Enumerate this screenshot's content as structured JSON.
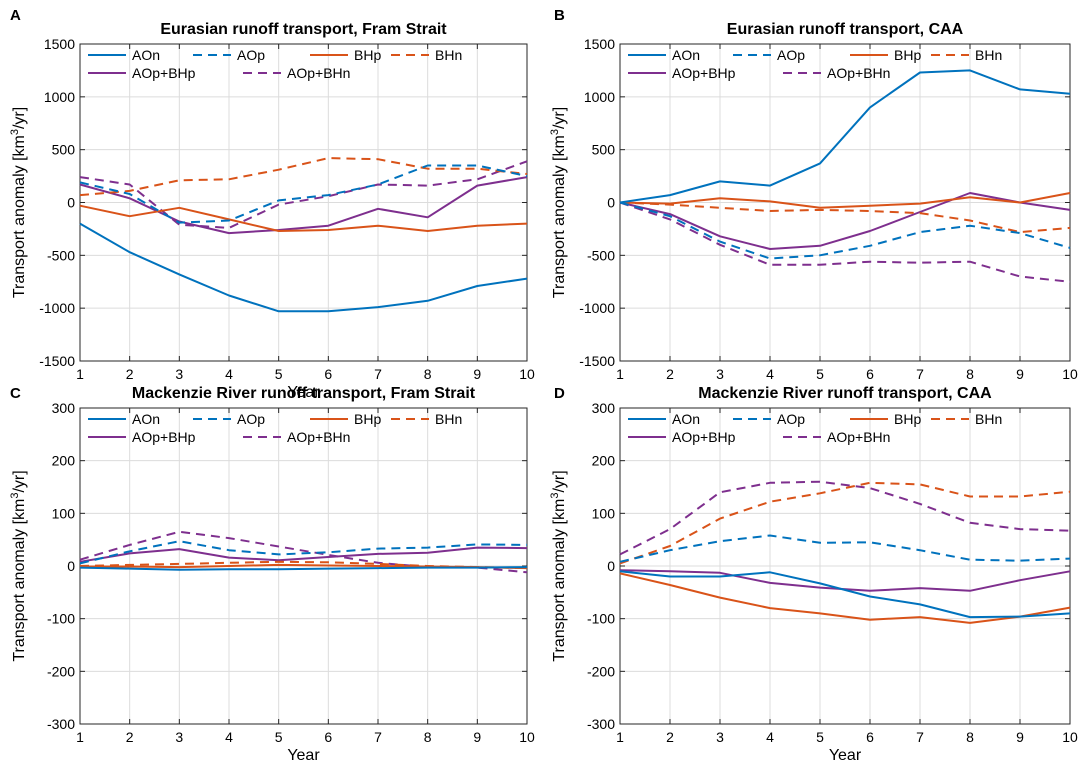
{
  "figure": {
    "xlabel": "Year",
    "ylabel": "Transport anomaly [km³/yr]",
    "series_styles": {
      "AOn": {
        "color": "#0072BD",
        "dash": "solid"
      },
      "AOp": {
        "color": "#0072BD",
        "dash": "dashed"
      },
      "BHp": {
        "color": "#D95319",
        "dash": "solid"
      },
      "BHn": {
        "color": "#D95319",
        "dash": "dashed"
      },
      "AOp+BHp": {
        "color": "#7E2F8E",
        "dash": "solid"
      },
      "AOp+BHn": {
        "color": "#7E2F8E",
        "dash": "dashed"
      }
    }
  },
  "chart_data": [
    {
      "panel": "A",
      "type": "line",
      "title": "Eurasian runoff transport, Fram Strait",
      "xlabel": "Year",
      "ylabel": "Transport anomaly [km³/yr]",
      "xlim": [
        1,
        10
      ],
      "ylim": [
        -1500,
        1500
      ],
      "xticks": [
        1,
        2,
        3,
        4,
        5,
        6,
        7,
        8,
        9,
        10
      ],
      "yticks": [
        -1500,
        -1000,
        -500,
        0,
        500,
        1000,
        1500
      ],
      "x": [
        1,
        2,
        3,
        4,
        5,
        6,
        7,
        8,
        9,
        10
      ],
      "series": [
        {
          "name": "AOn",
          "values": [
            -200,
            -470,
            -680,
            -880,
            -1030,
            -1030,
            -990,
            -930,
            -790,
            -720
          ]
        },
        {
          "name": "AOp",
          "values": [
            190,
            80,
            -190,
            -170,
            20,
            70,
            170,
            350,
            350,
            250
          ]
        },
        {
          "name": "BHp",
          "values": [
            -30,
            -130,
            -50,
            -160,
            -270,
            -260,
            -220,
            -270,
            -220,
            -200
          ]
        },
        {
          "name": "BHn",
          "values": [
            70,
            110,
            210,
            220,
            310,
            420,
            410,
            320,
            320,
            270
          ]
        },
        {
          "name": "AOp+BHp",
          "values": [
            170,
            40,
            -180,
            -290,
            -260,
            -220,
            -60,
            -140,
            160,
            240
          ]
        },
        {
          "name": "AOp+BHn",
          "values": [
            240,
            170,
            -210,
            -240,
            -20,
            60,
            170,
            160,
            220,
            390
          ]
        }
      ]
    },
    {
      "panel": "B",
      "type": "line",
      "title": "Eurasian runoff transport, CAA",
      "xlabel": "",
      "ylabel": "",
      "xlim": [
        1,
        10
      ],
      "ylim": [
        -1500,
        1500
      ],
      "xticks": [
        1,
        2,
        3,
        4,
        5,
        6,
        7,
        8,
        9,
        10
      ],
      "yticks": [
        -1500,
        -1000,
        -500,
        0,
        500,
        1000,
        1500
      ],
      "x": [
        1,
        2,
        3,
        4,
        5,
        6,
        7,
        8,
        9,
        10
      ],
      "series": [
        {
          "name": "AOn",
          "values": [
            0,
            70,
            200,
            160,
            370,
            900,
            1230,
            1250,
            1070,
            1030
          ]
        },
        {
          "name": "AOp",
          "values": [
            0,
            -130,
            -370,
            -530,
            -500,
            -410,
            -280,
            -220,
            -290,
            -430
          ]
        },
        {
          "name": "BHp",
          "values": [
            0,
            -10,
            40,
            10,
            -50,
            -30,
            -10,
            50,
            0,
            90
          ]
        },
        {
          "name": "BHn",
          "values": [
            0,
            -20,
            -50,
            -80,
            -70,
            -80,
            -100,
            -170,
            -280,
            -240
          ]
        },
        {
          "name": "AOp+BHp",
          "values": [
            0,
            -110,
            -320,
            -440,
            -410,
            -270,
            -90,
            90,
            0,
            -70
          ]
        },
        {
          "name": "AOp+BHn",
          "values": [
            0,
            -160,
            -400,
            -590,
            -590,
            -560,
            -570,
            -560,
            -700,
            -750
          ]
        }
      ]
    },
    {
      "panel": "C",
      "type": "line",
      "title": "Mackenzie River runoff transport, Fram Strait",
      "xlabel": "Year",
      "ylabel": "Transport anomaly [km³/yr]",
      "xlim": [
        1,
        10
      ],
      "ylim": [
        -300,
        300
      ],
      "xticks": [
        1,
        2,
        3,
        4,
        5,
        6,
        7,
        8,
        9,
        10
      ],
      "yticks": [
        -300,
        -200,
        -100,
        0,
        100,
        200,
        300
      ],
      "x": [
        1,
        2,
        3,
        4,
        5,
        6,
        7,
        8,
        9,
        10
      ],
      "series": [
        {
          "name": "AOn",
          "values": [
            -3,
            -5,
            -7,
            -6,
            -6,
            -5,
            -4,
            -3,
            -3,
            -2
          ]
        },
        {
          "name": "AOp",
          "values": [
            5,
            28,
            47,
            30,
            22,
            26,
            33,
            35,
            41,
            40
          ]
        },
        {
          "name": "BHp",
          "values": [
            -1,
            -1,
            -2,
            0,
            2,
            1,
            0,
            -1,
            -2,
            -4
          ]
        },
        {
          "name": "BHn",
          "values": [
            0,
            2,
            4,
            6,
            8,
            7,
            4,
            0,
            -2,
            -4
          ]
        },
        {
          "name": "AOp+BHp",
          "values": [
            8,
            24,
            32,
            16,
            11,
            17,
            23,
            25,
            35,
            34
          ]
        },
        {
          "name": "AOp+BHn",
          "values": [
            12,
            40,
            65,
            53,
            37,
            21,
            6,
            -2,
            -3,
            -12
          ]
        }
      ]
    },
    {
      "panel": "D",
      "type": "line",
      "title": "Mackenzie River runoff transport, CAA",
      "xlabel": "Year",
      "ylabel": "Transport anomaly [km³/yr]",
      "xlim": [
        1,
        10
      ],
      "ylim": [
        -300,
        300
      ],
      "xticks": [
        1,
        2,
        3,
        4,
        5,
        6,
        7,
        8,
        9,
        10
      ],
      "yticks": [
        -300,
        -200,
        -100,
        0,
        100,
        200,
        300
      ],
      "x": [
        1,
        2,
        3,
        4,
        5,
        6,
        7,
        8,
        9,
        10
      ],
      "series": [
        {
          "name": "AOn",
          "values": [
            -10,
            -20,
            -20,
            -12,
            -33,
            -58,
            -73,
            -97,
            -96,
            -90
          ]
        },
        {
          "name": "AOp",
          "values": [
            8,
            30,
            47,
            58,
            44,
            45,
            30,
            12,
            10,
            14
          ]
        },
        {
          "name": "BHp",
          "values": [
            -14,
            -36,
            -60,
            -80,
            -90,
            -102,
            -97,
            -108,
            -96,
            -79
          ]
        },
        {
          "name": "BHn",
          "values": [
            5,
            38,
            90,
            122,
            138,
            158,
            155,
            132,
            132,
            141
          ]
        },
        {
          "name": "AOp+BHp",
          "values": [
            -8,
            -10,
            -13,
            -32,
            -41,
            -47,
            -42,
            -47,
            -27,
            -10
          ]
        },
        {
          "name": "AOp+BHn",
          "values": [
            22,
            70,
            140,
            158,
            160,
            148,
            118,
            82,
            70,
            67
          ]
        }
      ]
    }
  ]
}
